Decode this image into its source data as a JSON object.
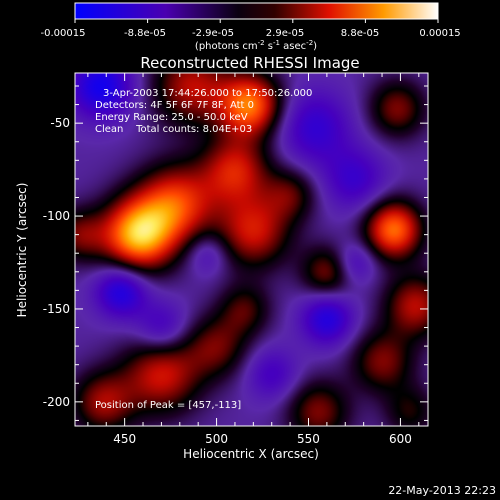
{
  "colorbar": {
    "tick_labels": [
      "-0.00015",
      "-8.8e-05",
      "-2.9e-05",
      "2.9e-05",
      "8.8e-05",
      "0.00015"
    ],
    "unit_main": "(photons cm",
    "unit_exp1": "-2",
    "unit_mid": " s",
    "unit_exp2": "-1",
    "unit_mid2": " asec",
    "unit_exp3": "-2",
    "unit_end": ")",
    "colors": [
      "#0000ff",
      "#000000",
      "#ff0000",
      "#ffff66",
      "#ffffff"
    ]
  },
  "chart_data": {
    "type": "heatmap",
    "title": "Reconstructed RHESSI Image",
    "xlabel": "Heliocentric X (arcsec)",
    "ylabel": "Heliocentric Y (arcsec)",
    "xlim": [
      423,
      615
    ],
    "ylim": [
      -213,
      -23
    ],
    "x_ticks": [
      450,
      500,
      550,
      600
    ],
    "y_ticks": [
      -50,
      -100,
      -150,
      -200
    ],
    "x_tick_labels": [
      "450",
      "500",
      "550",
      "600"
    ],
    "y_tick_labels": [
      "-50",
      "-100",
      "-150",
      "-200"
    ],
    "annotations": {
      "time": "3-Apr-2003 17:44:26.000 to 17:50:26.000",
      "detectors": "Detectors: 4F 5F 6F 7F 8F, Att 0",
      "energy": "Energy Range: 25.0 - 50.0 keV",
      "clean": "Clean    Total counts: 8.04E+03",
      "peak": "Position of Peak = [457,-113]"
    },
    "peak": [
      457,
      -113
    ],
    "blobs": [
      {
        "x": 457,
        "y": -110,
        "amp": 1.0,
        "s": 14
      },
      {
        "x": 478,
        "y": -93,
        "amp": 0.7,
        "s": 15
      },
      {
        "x": 510,
        "y": -75,
        "amp": 0.6,
        "s": 13
      },
      {
        "x": 518,
        "y": -40,
        "amp": 0.85,
        "s": 12
      },
      {
        "x": 520,
        "y": -108,
        "amp": 0.6,
        "s": 14
      },
      {
        "x": 486,
        "y": -30,
        "amp": 0.55,
        "s": 15
      },
      {
        "x": 596,
        "y": -107,
        "amp": 0.85,
        "s": 11
      },
      {
        "x": 598,
        "y": -42,
        "amp": 0.45,
        "s": 11
      },
      {
        "x": 608,
        "y": -148,
        "amp": 0.55,
        "s": 12
      },
      {
        "x": 590,
        "y": -178,
        "amp": 0.45,
        "s": 12
      },
      {
        "x": 560,
        "y": -130,
        "amp": 0.45,
        "s": 10
      },
      {
        "x": 470,
        "y": -185,
        "amp": 0.6,
        "s": 15
      },
      {
        "x": 438,
        "y": -200,
        "amp": 0.5,
        "s": 12
      },
      {
        "x": 500,
        "y": -170,
        "amp": 0.4,
        "s": 12
      },
      {
        "x": 515,
        "y": -150,
        "amp": 0.35,
        "s": 10
      },
      {
        "x": 555,
        "y": -205,
        "amp": 0.45,
        "s": 12
      },
      {
        "x": 425,
        "y": -110,
        "amp": 0.4,
        "s": 10
      },
      {
        "x": 540,
        "y": -88,
        "amp": 0.35,
        "s": 10
      },
      {
        "x": 605,
        "y": -205,
        "amp": 0.3,
        "s": 10
      },
      {
        "x": 448,
        "y": -140,
        "amp": -0.55,
        "s": 10
      },
      {
        "x": 560,
        "y": -155,
        "amp": -0.5,
        "s": 10
      },
      {
        "x": 437,
        "y": -30,
        "amp": -0.6,
        "s": 12
      },
      {
        "x": 553,
        "y": -52,
        "amp": -0.4,
        "s": 14
      },
      {
        "x": 575,
        "y": -80,
        "amp": -0.35,
        "s": 12
      },
      {
        "x": 470,
        "y": -160,
        "amp": -0.35,
        "s": 10
      },
      {
        "x": 530,
        "y": -185,
        "amp": -0.3,
        "s": 10
      },
      {
        "x": 575,
        "y": -125,
        "amp": -0.3,
        "s": 8
      },
      {
        "x": 495,
        "y": -120,
        "amp": -0.25,
        "s": 8
      }
    ]
  },
  "footer": {
    "date": "22-May-2013 22:23"
  }
}
